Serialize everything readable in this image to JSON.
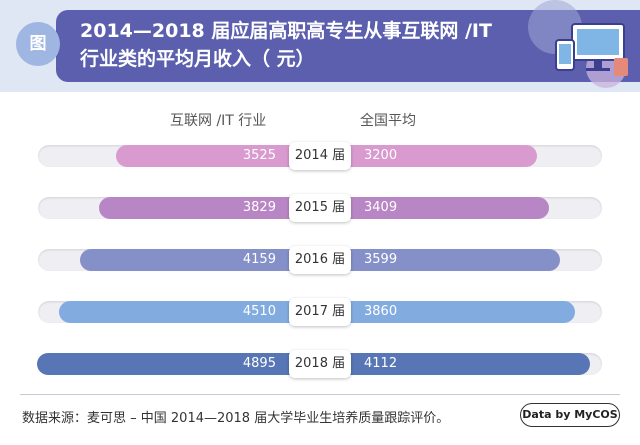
{
  "header": {
    "fig_tag": "图",
    "title_line1": "2014—2018 届应届高职高专生从事互联网 /IT",
    "title_line2": "行业类的平均月收入（ 元）"
  },
  "chart_data": {
    "type": "bar",
    "orientation": "horizontal-diverging",
    "categories": [
      "2014 届",
      "2015 届",
      "2016 届",
      "2017 届",
      "2018 届"
    ],
    "series": [
      {
        "name": "互联网 /IT 行业",
        "values": [
          3525,
          3829,
          4159,
          4510,
          4895
        ],
        "colors": [
          "#d99ad0",
          "#b886c4",
          "#8590c9",
          "#82ace0",
          "#5876b5"
        ]
      },
      {
        "name": "全国平均",
        "values": [
          3200,
          3409,
          3599,
          3860,
          4112
        ],
        "colors": [
          "#d99ad0",
          "#b886c4",
          "#8590c9",
          "#82ace0",
          "#5876b5"
        ]
      }
    ]
  },
  "footer": {
    "source": "数据来源：麦可思 – 中国 2014—2018 届大学毕业生培养质量跟踪评价。",
    "badge": "Data by MyCOS"
  }
}
